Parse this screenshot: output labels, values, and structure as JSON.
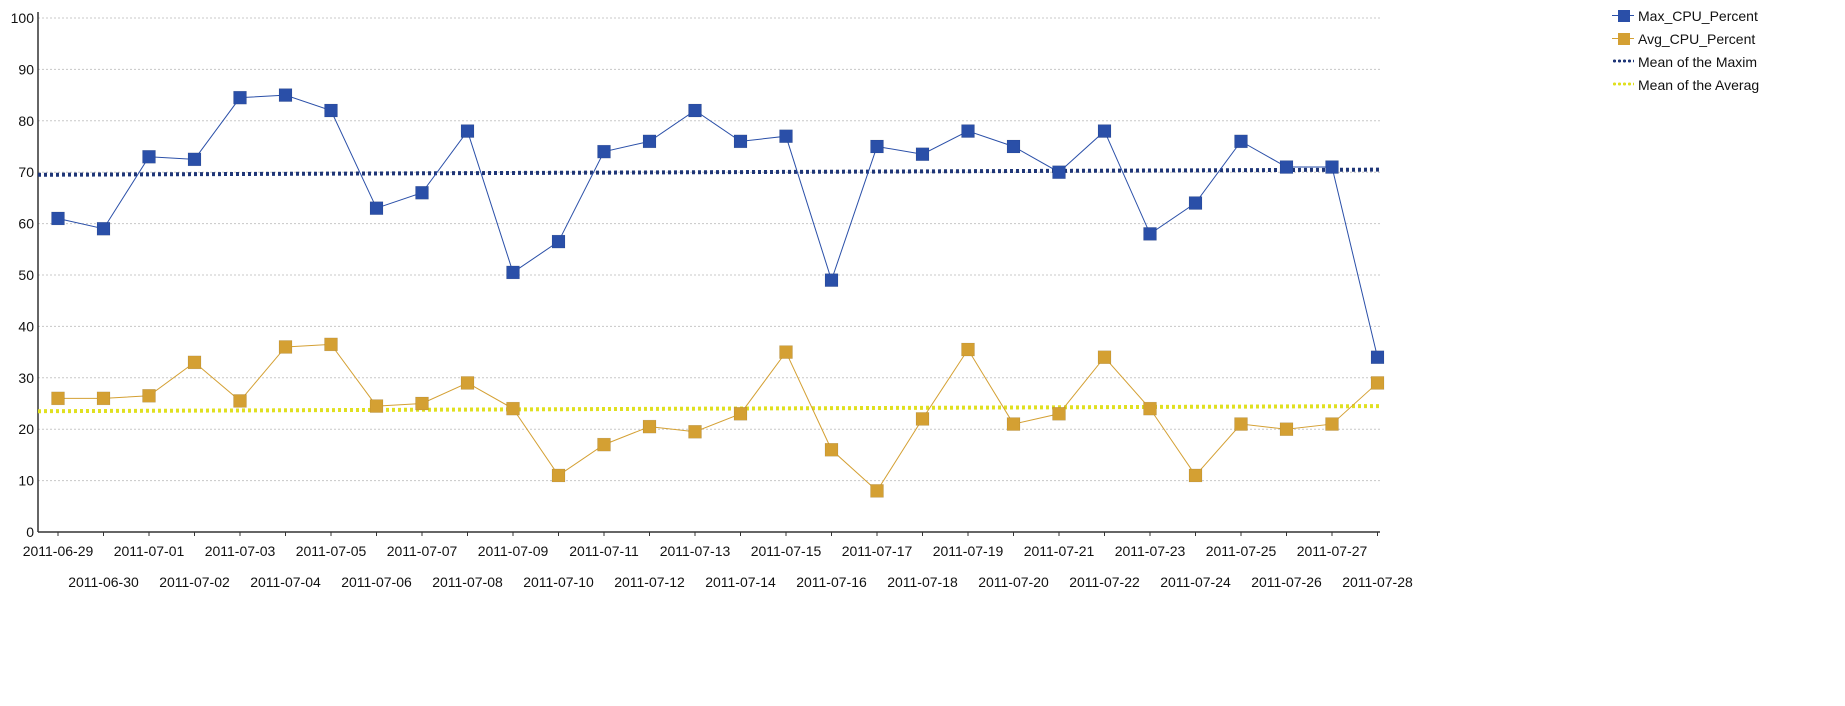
{
  "chart_data": {
    "type": "line",
    "title": "",
    "xlabel": "",
    "ylabel": "",
    "ylim": [
      0,
      100
    ],
    "yticks": [
      0,
      10,
      20,
      30,
      40,
      50,
      60,
      70,
      80,
      90,
      100
    ],
    "grid": true,
    "legend_position": "top-right",
    "categories": [
      "2011-06-29",
      "2011-06-30",
      "2011-07-01",
      "2011-07-02",
      "2011-07-03",
      "2011-07-04",
      "2011-07-05",
      "2011-07-06",
      "2011-07-07",
      "2011-07-08",
      "2011-07-09",
      "2011-07-10",
      "2011-07-11",
      "2011-07-12",
      "2011-07-13",
      "2011-07-14",
      "2011-07-15",
      "2011-07-16",
      "2011-07-17",
      "2011-07-18",
      "2011-07-19",
      "2011-07-20",
      "2011-07-21",
      "2011-07-22",
      "2011-07-23",
      "2011-07-24",
      "2011-07-25",
      "2011-07-26",
      "2011-07-27",
      "2011-07-28"
    ],
    "series": [
      {
        "name": "Max_CPU_Percent",
        "color": "#2a4fa8",
        "marker": "square",
        "values": [
          61,
          59,
          73,
          72.5,
          84.5,
          85,
          82,
          63,
          66,
          78,
          50.5,
          56.5,
          74,
          76,
          82,
          76,
          77,
          49,
          75,
          73.5,
          78,
          75,
          70,
          78,
          58,
          64,
          76,
          71,
          71,
          34
        ]
      },
      {
        "name": "Avg_CPU_Percent",
        "color": "#d4a033",
        "marker": "square",
        "values": [
          26,
          26,
          26.5,
          33,
          25.5,
          36,
          36.5,
          24.5,
          25,
          29,
          24,
          11,
          17,
          20.5,
          19.5,
          23,
          35,
          16,
          8,
          22,
          35.5,
          21,
          23,
          34,
          24,
          11,
          21,
          20,
          21,
          29
        ]
      },
      {
        "name": "Mean of the Maxim",
        "color": "#1f3677",
        "style": "dotted",
        "values_range": [
          69.5,
          70.5
        ]
      },
      {
        "name": "Mean of the Averag",
        "color": "#e0e020",
        "style": "dotted",
        "values_range": [
          23.5,
          24.5
        ]
      }
    ]
  }
}
